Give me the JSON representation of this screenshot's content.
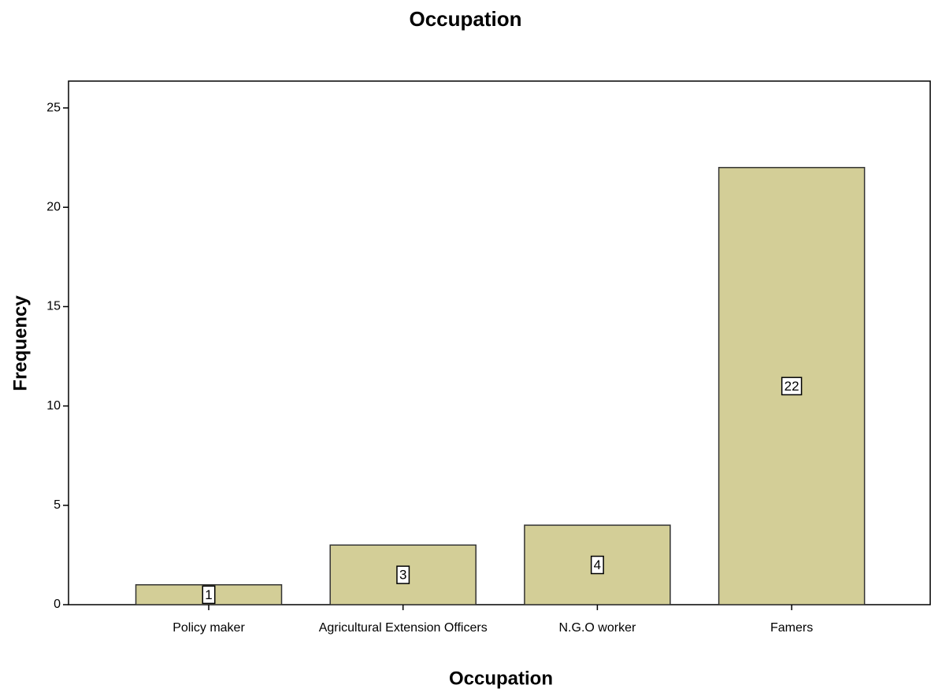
{
  "chart_data": {
    "type": "bar",
    "title": "Occupation",
    "x_label": "Occupation",
    "y_label": "Frequency",
    "categories": [
      "Policy maker",
      "Agricultural Extension Officers",
      "N.G.O worker",
      "Famers"
    ],
    "values": [
      1,
      3,
      4,
      22
    ],
    "color": "#d3ce97",
    "ylim": [
      0,
      26.35
    ],
    "yticks": [
      0,
      5,
      10,
      15,
      20,
      25
    ],
    "grid": false,
    "data_labels": true
  }
}
